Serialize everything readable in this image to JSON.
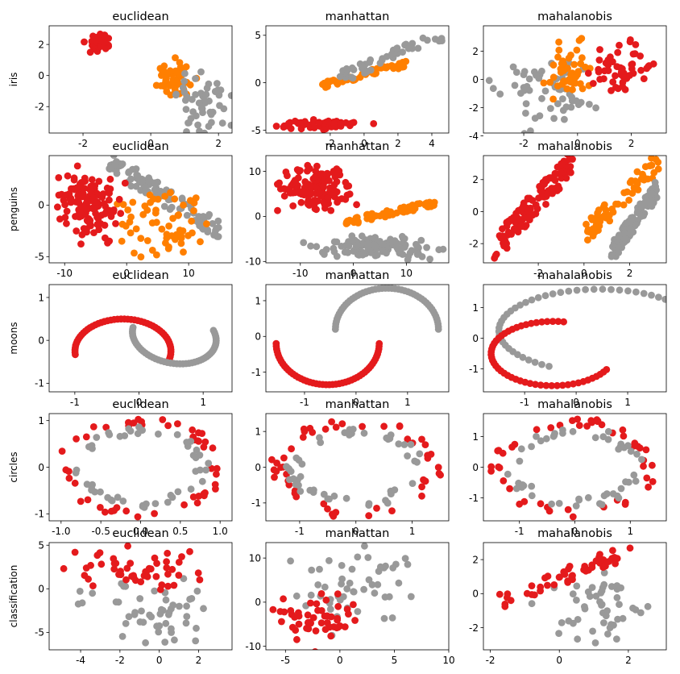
{
  "colors": {
    "0": "#999999",
    "1": "#e41a1c",
    "2": "#ff7f00"
  },
  "chart_data": [
    {
      "type": "scatter",
      "title": "euclidean",
      "ylabel": "iris",
      "xlim": [
        -3.0,
        2.4
      ],
      "ylim": [
        -3.7,
        3.2
      ],
      "xticks": [
        "-2",
        "0",
        "2"
      ],
      "xtick_values": [
        -2,
        0,
        2
      ],
      "yticks": [
        "-2",
        "0",
        "2"
      ],
      "ytick_values": [
        -2,
        0,
        2
      ],
      "grid": false,
      "series": [
        {
          "cls": 1,
          "gen": "blob",
          "x": [
            -1.9,
            -1.2
          ],
          "y": [
            1.3,
            2.9
          ],
          "n": 46,
          "seed": 11
        },
        {
          "cls": 2,
          "gen": "blob",
          "x": [
            0.0,
            1.3
          ],
          "y": [
            -1.5,
            1.2
          ],
          "n": 50,
          "seed": 12
        },
        {
          "cls": 0,
          "gen": "blob",
          "x": [
            0.6,
            2.3
          ],
          "y": [
            -3.5,
            0.3
          ],
          "n": 54,
          "seed": 13
        }
      ]
    },
    {
      "type": "scatter",
      "title": "manhattan",
      "ylabel": "",
      "xlim": [
        -5.8,
        5.0
      ],
      "ylim": [
        -5.3,
        6.0
      ],
      "xticks": [
        "-2",
        "0",
        "2",
        "4"
      ],
      "xtick_values": [
        -2,
        0,
        2,
        4
      ],
      "yticks": [
        "-5",
        "0",
        "5"
      ],
      "ytick_values": [
        -5,
        0,
        5
      ],
      "grid": false,
      "series": [
        {
          "cls": 1,
          "gen": "blob",
          "x": [
            -5.4,
            0.3
          ],
          "y": [
            -5.0,
            -3.7
          ],
          "n": 50,
          "seed": 21
        },
        {
          "cls": 2,
          "gen": "diag",
          "x": [
            -2.5,
            2.5
          ],
          "y": [
            -0.3,
            2.0
          ],
          "n": 50,
          "seed": 22
        },
        {
          "cls": 0,
          "gen": "diag",
          "x": [
            -1.5,
            4.6
          ],
          "y": [
            0.5,
            5.0
          ],
          "n": 50,
          "seed": 23
        }
      ]
    },
    {
      "type": "scatter",
      "title": "mahalanobis",
      "ylabel": "",
      "xlim": [
        -3.5,
        3.3
      ],
      "ylim": [
        -3.8,
        3.8
      ],
      "xticks": [
        "-2",
        "0",
        "2"
      ],
      "xtick_values": [
        -2,
        0,
        2
      ],
      "yticks": [
        "-4",
        "-2",
        "0",
        "2"
      ],
      "ytick_values": [
        -4,
        -2,
        0,
        2
      ],
      "grid": false,
      "series": [
        {
          "cls": 0,
          "gen": "blob",
          "x": [
            -3.2,
            1.0
          ],
          "y": [
            -3.6,
            1.6
          ],
          "n": 55,
          "seed": 31
        },
        {
          "cls": 2,
          "gen": "blob",
          "x": [
            -1.5,
            0.8
          ],
          "y": [
            -1.6,
            3.2
          ],
          "n": 45,
          "seed": 32
        },
        {
          "cls": 1,
          "gen": "blob",
          "x": [
            0.5,
            3.0
          ],
          "y": [
            -1.2,
            3.0
          ],
          "n": 50,
          "seed": 33
        }
      ]
    },
    {
      "type": "scatter",
      "title": "euclidean",
      "ylabel": "penguins",
      "xlim": [
        -12.5,
        17.0
      ],
      "ylim": [
        -5.6,
        4.8
      ],
      "xticks": [
        "-10",
        "0",
        "10"
      ],
      "xtick_values": [
        -10,
        0,
        10
      ],
      "yticks": [
        "-5",
        "0"
      ],
      "ytick_values": [
        -5,
        0
      ],
      "grid": false,
      "series": [
        {
          "cls": 0,
          "gen": "diag",
          "x": [
            -3.0,
            15.0
          ],
          "y": [
            4.2,
            -2.5
          ],
          "n": 100,
          "seed": 41
        },
        {
          "cls": 2,
          "gen": "blob",
          "x": [
            -3.0,
            14.0
          ],
          "y": [
            -5.5,
            1.5
          ],
          "n": 60,
          "seed": 42
        },
        {
          "cls": 1,
          "gen": "blob",
          "x": [
            -11.5,
            -1.0
          ],
          "y": [
            -3.5,
            3.8
          ],
          "n": 130,
          "seed": 43
        }
      ]
    },
    {
      "type": "scatter",
      "title": "manhattan",
      "ylabel": "",
      "xlim": [
        -16.5,
        18.0
      ],
      "ylim": [
        -10.3,
        13.5
      ],
      "xticks": [
        "-10",
        "0",
        "10"
      ],
      "xtick_values": [
        -10,
        0,
        10
      ],
      "yticks": [
        "-10",
        "0",
        "10"
      ],
      "ytick_values": [
        -10,
        0,
        10
      ],
      "grid": false,
      "series": [
        {
          "cls": 0,
          "gen": "blob",
          "x": [
            -8.0,
            16.0
          ],
          "y": [
            -9.5,
            -4.0
          ],
          "n": 110,
          "seed": 51
        },
        {
          "cls": 2,
          "gen": "diag",
          "x": [
            -2.0,
            16.0
          ],
          "y": [
            -1.5,
            3.2
          ],
          "n": 60,
          "seed": 52
        },
        {
          "cls": 1,
          "gen": "blob",
          "x": [
            -15.0,
            0.0
          ],
          "y": [
            1.5,
            12.0
          ],
          "n": 140,
          "seed": 53
        }
      ]
    },
    {
      "type": "scatter",
      "title": "mahalanobis",
      "ylabel": "",
      "xlim": [
        -4.4,
        3.6
      ],
      "ylim": [
        -3.2,
        3.5
      ],
      "xticks": [
        "-2",
        "0",
        "2"
      ],
      "xtick_values": [
        -2,
        0,
        2
      ],
      "yticks": [
        "-2",
        "0",
        "2"
      ],
      "ytick_values": [
        -2,
        0,
        2
      ],
      "grid": false,
      "series": [
        {
          "cls": 1,
          "gen": "diag",
          "x": [
            -4.0,
            -0.5
          ],
          "y": [
            -2.5,
            3.2
          ],
          "n": 120,
          "seed": 61
        },
        {
          "cls": 2,
          "gen": "diag",
          "x": [
            0.0,
            3.3
          ],
          "y": [
            -1.5,
            3.2
          ],
          "n": 60,
          "seed": 62
        },
        {
          "cls": 0,
          "gen": "diag",
          "x": [
            1.2,
            3.2
          ],
          "y": [
            -2.6,
            1.4
          ],
          "n": 120,
          "seed": 63
        }
      ]
    },
    {
      "type": "scatter",
      "title": "euclidean",
      "ylabel": "moons",
      "xlim": [
        -1.4,
        1.45
      ],
      "ylim": [
        -1.2,
        1.3
      ],
      "xticks": [
        "-1",
        "0",
        "1"
      ],
      "xtick_values": [
        -1,
        0,
        1
      ],
      "yticks": [
        "-1",
        "0",
        "1"
      ],
      "ytick_values": [
        -1,
        0,
        1
      ],
      "grid": false,
      "series": [
        {
          "cls": 1,
          "gen": "arc",
          "cx": -0.25,
          "cy": -0.25,
          "rx": 0.75,
          "ry": 0.75,
          "a0": -150,
          "a1": 50,
          "cos_a": -0.72,
          "sin_a": 0.69,
          "n": 50
        },
        {
          "cls": 0,
          "gen": "arc",
          "cx": 0.55,
          "cy": 0.1,
          "rx": 0.7,
          "ry": 0.6,
          "a0": -150,
          "a1": 60,
          "cos_a": 0.72,
          "sin_a": -0.69,
          "n": 50
        }
      ]
    },
    {
      "type": "scatter",
      "title": "manhattan",
      "ylabel": "",
      "xlim": [
        -1.75,
        1.8
      ],
      "ylim": [
        -1.55,
        1.45
      ],
      "xticks": [
        "-1",
        "0",
        "1"
      ],
      "xtick_values": [
        -1,
        0,
        1
      ],
      "yticks": [
        "-1",
        "0",
        "1"
      ],
      "ytick_values": [
        -1,
        0,
        1
      ],
      "grid": false,
      "series": [
        {
          "cls": 0,
          "gen": "arc",
          "cx": 0.6,
          "cy": 0.2,
          "rx": 1.0,
          "ry": 1.15,
          "a0": 0,
          "a1": 180,
          "cos_a": 1,
          "sin_a": 0,
          "n": 50
        },
        {
          "cls": 1,
          "gen": "arc",
          "cx": -0.55,
          "cy": -0.2,
          "rx": 1.0,
          "ry": 1.15,
          "a0": 180,
          "a1": 360,
          "cos_a": 1,
          "sin_a": 0,
          "n": 50
        }
      ]
    },
    {
      "type": "scatter",
      "title": "mahalanobis",
      "ylabel": "",
      "xlim": [
        -1.8,
        1.75
      ],
      "ylim": [
        -1.75,
        1.75
      ],
      "xticks": [
        "-1",
        "0",
        "1"
      ],
      "xtick_values": [
        -1,
        0,
        1
      ],
      "yticks": [
        "-1",
        "0",
        "1"
      ],
      "ytick_values": [
        -1,
        0,
        1
      ],
      "grid": false,
      "series": [
        {
          "cls": 0,
          "gen": "arc",
          "cx": 0.45,
          "cy": 0.25,
          "rx": 1.95,
          "ry": 1.35,
          "a0": 0,
          "a1": 240,
          "cos_a": 1,
          "sin_a": 0,
          "n": 50
        },
        {
          "cls": 1,
          "gen": "arc",
          "cx": -0.45,
          "cy": -0.5,
          "rx": 1.2,
          "ry": 1.05,
          "a0": 80,
          "a1": 330,
          "cos_a": 1,
          "sin_a": 0,
          "n": 50
        }
      ]
    },
    {
      "type": "scatter",
      "title": "euclidean",
      "ylabel": "circles",
      "xlim": [
        -1.15,
        1.15
      ],
      "ylim": [
        -1.15,
        1.15
      ],
      "xticks": [
        "-1.0",
        "-0.5",
        "0.0",
        "0.5",
        "1.0"
      ],
      "xtick_values": [
        -1,
        -0.5,
        0,
        0.5,
        1
      ],
      "yticks": [
        "-1",
        "0",
        "1"
      ],
      "ytick_values": [
        -1,
        0,
        1
      ],
      "grid": false,
      "series": [
        {
          "cls": 1,
          "gen": "ring",
          "cx": 0,
          "cy": 0,
          "rx": 0.98,
          "ry": 0.98,
          "jitter": 0.09,
          "n": 50,
          "seed": 101
        },
        {
          "cls": 0,
          "gen": "ring",
          "cx": 0,
          "cy": 0,
          "rx": 0.78,
          "ry": 0.78,
          "jitter": 0.11,
          "n": 50,
          "seed": 102
        }
      ]
    },
    {
      "type": "scatter",
      "title": "manhattan",
      "ylabel": "",
      "xlim": [
        -1.6,
        1.65
      ],
      "ylim": [
        -1.5,
        1.5
      ],
      "xticks": [
        "-1",
        "0",
        "1"
      ],
      "xtick_values": [
        -1,
        0,
        1
      ],
      "yticks": [
        "-1",
        "0",
        "1"
      ],
      "ytick_values": [
        -1,
        0,
        1
      ],
      "grid": false,
      "series": [
        {
          "cls": 1,
          "gen": "ring",
          "cx": 0,
          "cy": 0,
          "rx": 1.38,
          "ry": 1.28,
          "jitter": 0.11,
          "n": 50,
          "seed": 111
        },
        {
          "cls": 0,
          "gen": "ring",
          "cx": 0,
          "cy": 0,
          "rx": 1.1,
          "ry": 1.0,
          "jitter": 0.13,
          "n": 50,
          "seed": 112
        }
      ]
    },
    {
      "type": "scatter",
      "title": "mahalanobis",
      "ylabel": "",
      "xlim": [
        -1.65,
        1.65
      ],
      "ylim": [
        -1.75,
        1.75
      ],
      "xticks": [
        "-1",
        "0",
        "1"
      ],
      "xtick_values": [
        -1,
        0,
        1
      ],
      "yticks": [
        "-1",
        "0",
        "1"
      ],
      "ytick_values": [
        -1,
        0,
        1
      ],
      "grid": false,
      "series": [
        {
          "cls": 1,
          "gen": "ring",
          "cx": 0,
          "cy": 0,
          "rx": 1.38,
          "ry": 1.48,
          "jitter": 0.11,
          "n": 50,
          "seed": 121
        },
        {
          "cls": 0,
          "gen": "ring",
          "cx": 0,
          "cy": 0,
          "rx": 1.1,
          "ry": 1.18,
          "jitter": 0.13,
          "n": 50,
          "seed": 122
        }
      ]
    },
    {
      "type": "scatter",
      "title": "euclidean",
      "ylabel": "classification",
      "xlim": [
        -5.6,
        3.7
      ],
      "ylim": [
        -7.0,
        5.3
      ],
      "xticks": [
        "-4",
        "-2",
        "0",
        "2"
      ],
      "xtick_values": [
        -4,
        -2,
        0,
        2
      ],
      "yticks": [
        "-5",
        "0",
        "5"
      ],
      "ytick_values": [
        -5,
        0,
        5
      ],
      "grid": false,
      "series": [
        {
          "cls": 0,
          "gen": "blob",
          "x": [
            -4.0,
            3.2
          ],
          "y": [
            -6.5,
            1.5
          ],
          "n": 50,
          "seed": 131
        },
        {
          "cls": 1,
          "gen": "blob",
          "x": [
            -5.2,
            3.0
          ],
          "y": [
            -0.5,
            4.8
          ],
          "n": 50,
          "seed": 132
        }
      ]
    },
    {
      "type": "scatter",
      "title": "manhattan",
      "ylabel": "",
      "xlim": [
        -6.8,
        10.0
      ],
      "ylim": [
        -10.8,
        13.5
      ],
      "xticks": [
        "-5",
        "0",
        "5",
        "10"
      ],
      "xtick_values": [
        -5,
        0,
        5,
        10
      ],
      "yticks": [
        "-10",
        "0",
        "10"
      ],
      "ytick_values": [
        -10,
        0,
        10
      ],
      "grid": false,
      "series": [
        {
          "cls": 0,
          "gen": "blob",
          "x": [
            -5.0,
            9.5
          ],
          "y": [
            -6.0,
            12.5
          ],
          "n": 50,
          "seed": 141
        },
        {
          "cls": 1,
          "gen": "blob",
          "x": [
            -6.0,
            2.0
          ],
          "y": [
            -10.0,
            3.0
          ],
          "n": 50,
          "seed": 142
        }
      ]
    },
    {
      "type": "scatter",
      "title": "mahalanobis",
      "ylabel": "",
      "xlim": [
        -2.2,
        3.1
      ],
      "ylim": [
        -3.3,
        3.0
      ],
      "xticks": [
        "-2",
        "0",
        "2"
      ],
      "xtick_values": [
        -2,
        0,
        2
      ],
      "yticks": [
        "-2",
        "0",
        "2"
      ],
      "ytick_values": [
        -2,
        0,
        2
      ],
      "grid": false,
      "series": [
        {
          "cls": 0,
          "gen": "blob",
          "x": [
            -1.0,
            3.0
          ],
          "y": [
            -3.0,
            1.0
          ],
          "n": 50,
          "seed": 151
        },
        {
          "cls": 1,
          "gen": "diag",
          "x": [
            -1.9,
            2.1
          ],
          "y": [
            -0.6,
            2.6
          ],
          "n": 50,
          "seed": 152
        }
      ]
    }
  ]
}
